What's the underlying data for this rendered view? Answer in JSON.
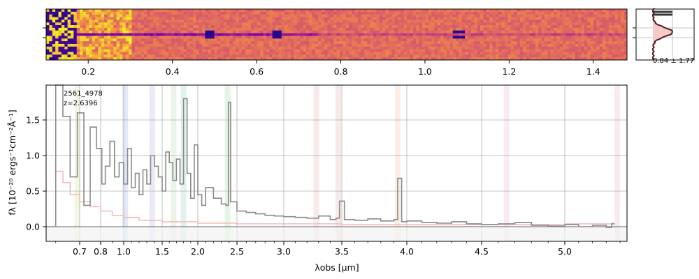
{
  "figure": {
    "object_id": "2561_4978",
    "redshift_label": "z=2.6396",
    "psf_label": "0.84 ± 1.77"
  },
  "colors": {
    "spectrum_line": "#8a8a8a",
    "error_line": "#f2b3b3",
    "grid": "#b0b0b0",
    "axes": "#000000",
    "profile_line": "#5a1a1a",
    "profile_fill": "#f7caca",
    "profile_mean": "#3a3a3a"
  },
  "chart_data": [
    {
      "type": "heatmap",
      "panel": "2D spectrum",
      "colormap": "plasma",
      "x_ticks": [
        "0.2",
        "0.4",
        "0.6",
        "0.8",
        "1.0",
        "1.2",
        "1.4"
      ],
      "xlim": [
        0.1,
        1.48
      ],
      "trace_rows": 19,
      "bright_spots_um": [
        0.49,
        0.65,
        1.08
      ]
    },
    {
      "type": "area",
      "panel": "spatial profile",
      "text": "0.84 ± 1.77"
    },
    {
      "type": "line",
      "panel": "1D spectrum",
      "xlabel": "λobs [μm]",
      "ylabel": "fλ [10⁻²⁰ ergs⁻¹cm⁻²Å⁻¹]",
      "xscale": "nonlinear",
      "xlim": [
        0.56,
        5.45
      ],
      "ylim": [
        -0.2,
        1.95
      ],
      "x_ticks": [
        "0.7",
        "0.8",
        "1.0",
        "1.5",
        "2.0",
        "2.5",
        "3.0",
        "3.5",
        "4.0",
        "4.5",
        "5.0"
      ],
      "y_ticks": [
        "0.0",
        "0.5",
        "1.0",
        "1.5"
      ],
      "grid": true,
      "annotations": [
        "2561_4978",
        "z=2.6396"
      ],
      "line_bands_um": [
        0.69,
        1.02,
        1.37,
        1.66,
        1.8,
        2.38,
        3.28,
        3.47,
        3.93,
        4.65,
        5.38
      ],
      "series": [
        {
          "role": "flux",
          "x": [
            0.6,
            0.63,
            0.66,
            0.69,
            0.72,
            0.75,
            0.78,
            0.81,
            0.84,
            0.88,
            0.92,
            0.96,
            1.0,
            1.05,
            1.1,
            1.15,
            1.2,
            1.25,
            1.3,
            1.35,
            1.4,
            1.45,
            1.5,
            1.55,
            1.6,
            1.65,
            1.7,
            1.75,
            1.8,
            1.85,
            1.9,
            1.95,
            2.0,
            2.05,
            2.1,
            2.2,
            2.3,
            2.36,
            2.39,
            2.42,
            2.5,
            2.6,
            2.7,
            2.8,
            2.9,
            3.0,
            3.1,
            3.2,
            3.3,
            3.4,
            3.45,
            3.48,
            3.52,
            3.6,
            3.7,
            3.8,
            3.9,
            3.93,
            3.96,
            4.0,
            4.1,
            4.2,
            4.3,
            4.4,
            4.5,
            4.6,
            4.7,
            4.8,
            4.9,
            5.0,
            5.1,
            5.2,
            5.3,
            5.34
          ],
          "values": [
            2.0,
            1.55,
            0.7,
            1.6,
            0.3,
            1.4,
            1.1,
            0.6,
            0.85,
            1.2,
            0.7,
            0.9,
            0.6,
            1.1,
            0.55,
            0.75,
            0.45,
            0.8,
            0.6,
            1.0,
            0.85,
            0.7,
            0.5,
            1.05,
            0.9,
            0.65,
            0.95,
            0.6,
            1.8,
            0.75,
            0.4,
            1.15,
            0.45,
            0.3,
            0.55,
            0.4,
            0.32,
            0.3,
            1.75,
            0.35,
            0.22,
            0.2,
            0.18,
            0.16,
            0.15,
            0.14,
            0.13,
            0.12,
            0.15,
            0.1,
            0.12,
            0.36,
            0.1,
            0.09,
            0.11,
            0.08,
            0.1,
            0.68,
            0.07,
            0.08,
            0.06,
            0.05,
            0.07,
            0.04,
            0.03,
            0.04,
            0.06,
            0.02,
            0.01,
            0.03,
            0.0,
            0.02,
            -0.01,
            0.04
          ]
        },
        {
          "role": "uncertainty",
          "x": [
            0.6,
            0.63,
            0.66,
            0.7,
            0.75,
            0.8,
            0.9,
            1.0,
            1.2,
            1.5,
            2.0,
            2.5,
            3.0,
            3.5,
            4.0,
            4.5,
            5.0,
            5.34
          ],
          "values": [
            0.78,
            0.62,
            0.45,
            0.35,
            0.28,
            0.22,
            0.16,
            0.13,
            0.09,
            0.07,
            0.05,
            0.04,
            0.04,
            0.03,
            0.03,
            0.03,
            0.04,
            0.05
          ]
        }
      ]
    }
  ]
}
